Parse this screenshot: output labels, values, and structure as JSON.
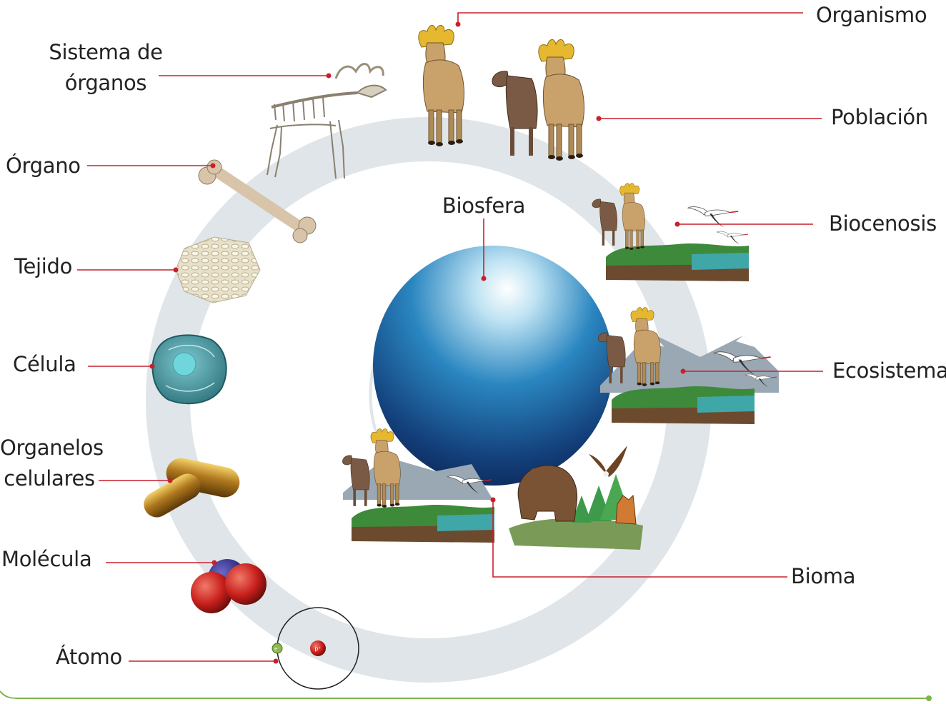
{
  "diagram": {
    "labels": {
      "organismo": "Organismo",
      "sistema_line1": "Sistema de",
      "sistema_line2": "órganos",
      "poblacion": "Población",
      "organo": "Órgano",
      "biocenosis": "Biocenosis",
      "tejido": "Tejido",
      "biosfera": "Biosfera",
      "celula": "Célula",
      "ecosistema": "Ecosistema",
      "organelos_line1": "Organelos",
      "organelos_line2": "celulares",
      "molecula": "Molécula",
      "bioma": "Bioma",
      "atomo": "Átomo"
    },
    "atom_symbols": {
      "electron": "e⁻",
      "proton": "p⁺"
    },
    "colors": {
      "leader_line": "#c8202c",
      "ring": "#dfe5e8",
      "footer_line": "#7ab648",
      "sphere_dark": "#0e2d5c",
      "sphere_light": "#ffffff",
      "moose_body": "#c9a26b",
      "antler": "#e6b830"
    },
    "icons": [
      "skeleton-icon",
      "bone-icon",
      "tissue-icon",
      "cell-icon",
      "organelle-icon",
      "molecule-icon",
      "atom-icon",
      "moose-icon",
      "bird-icon",
      "bear-icon",
      "eagle-icon",
      "fox-icon",
      "tree-icon",
      "mountain-icon",
      "fish-icon"
    ]
  }
}
